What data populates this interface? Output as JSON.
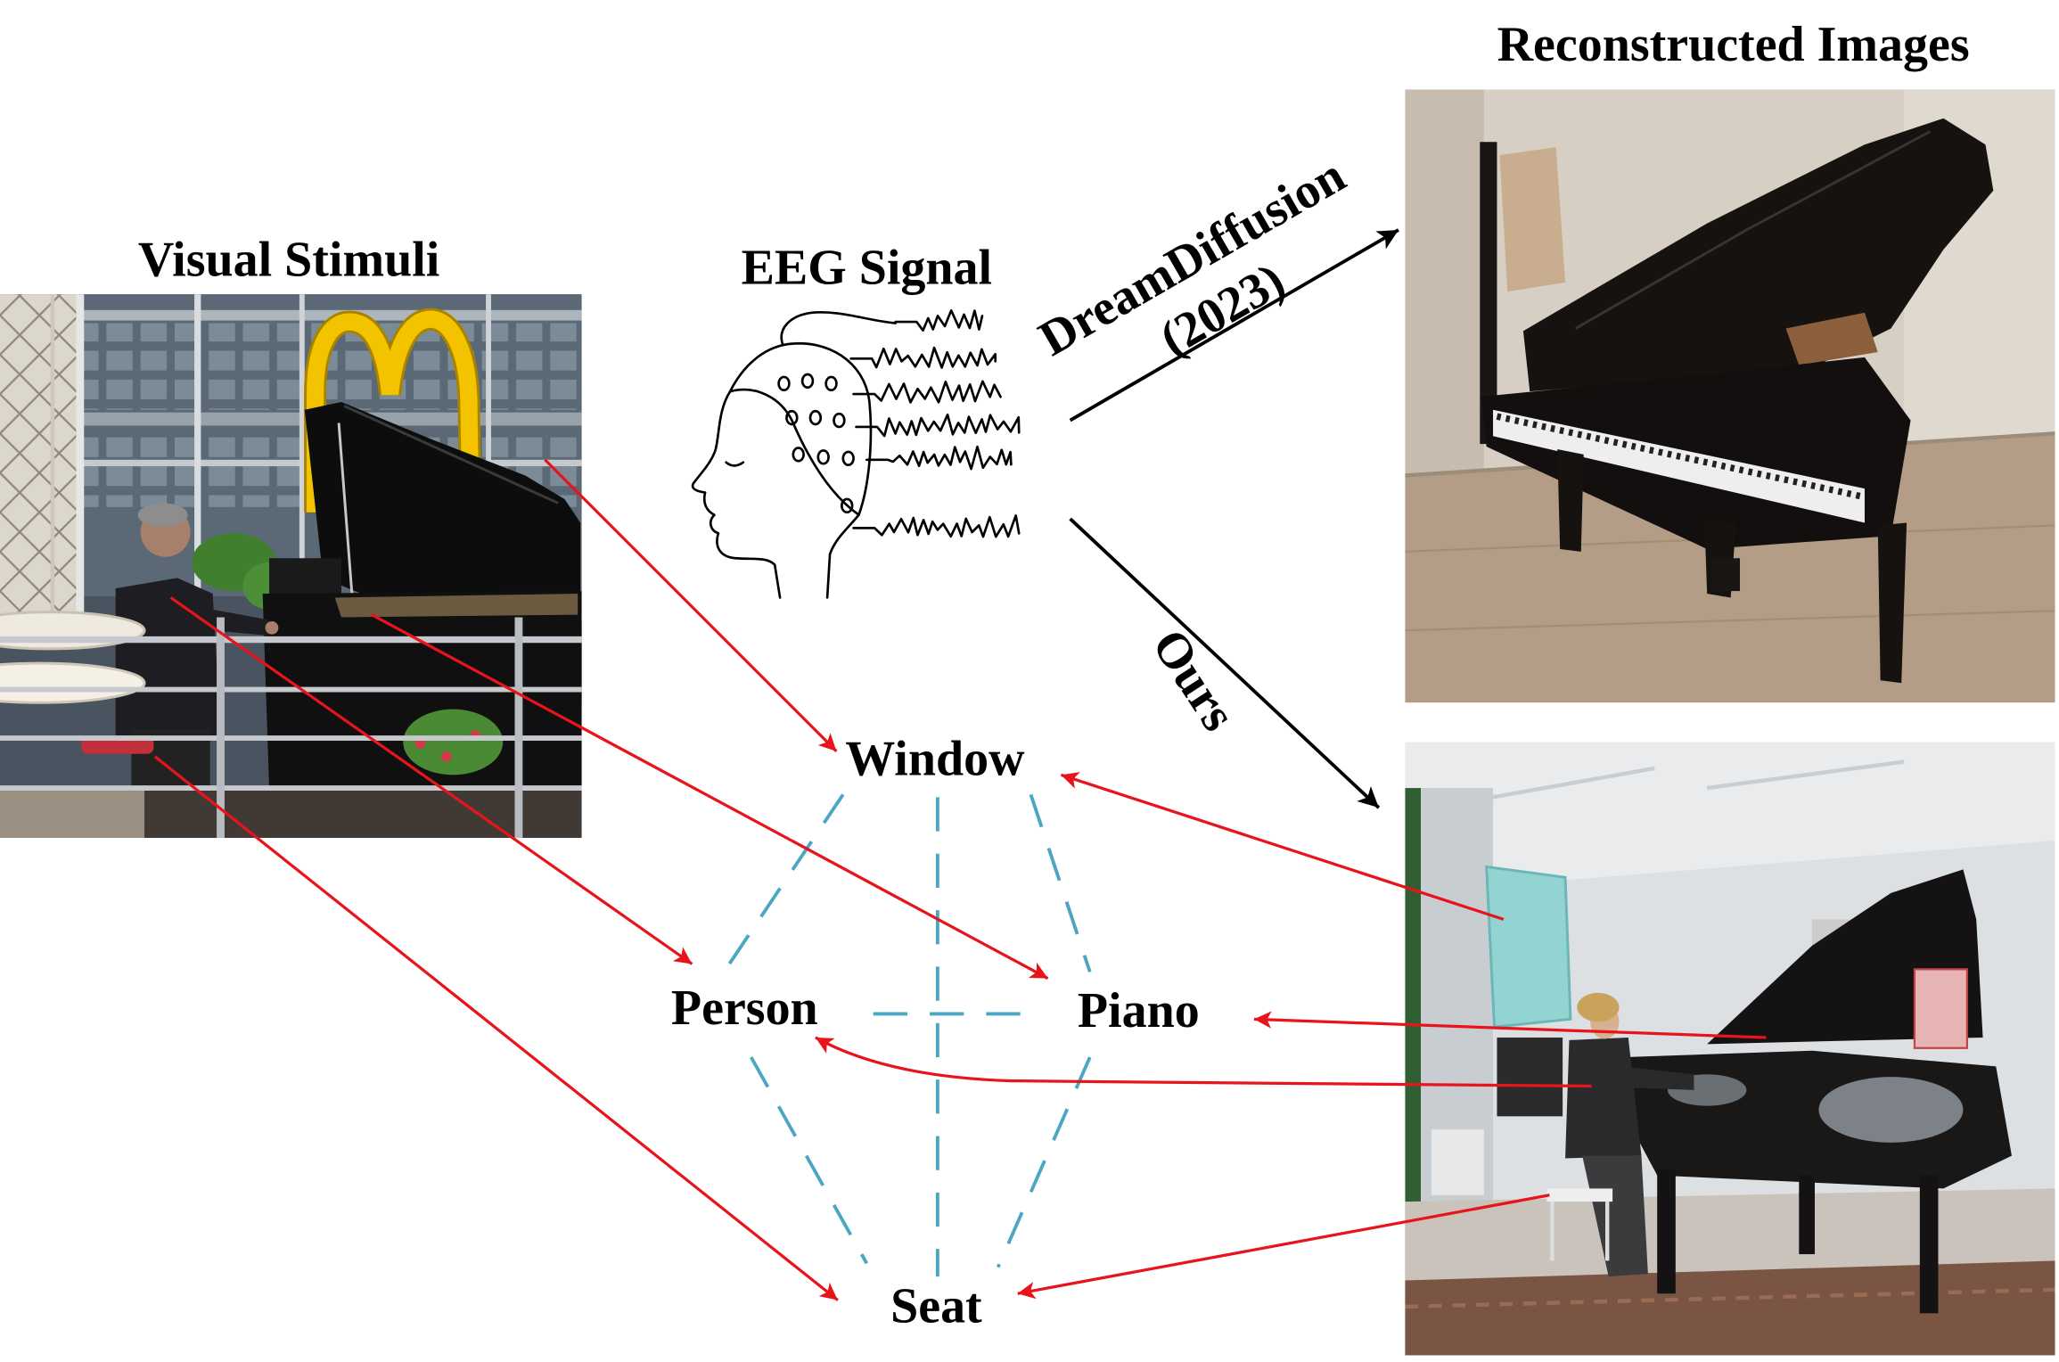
{
  "titles": {
    "visual_stimuli": "Visual Stimuli",
    "eeg_signal": "EEG Signal",
    "reconstructed_images": "Reconstructed Images"
  },
  "methods": {
    "baseline_name": "DreamDiffusion",
    "baseline_year": "(2023)",
    "ours": "Ours"
  },
  "scene_graph": {
    "nodes": [
      "Window",
      "Person",
      "Piano",
      "Seat"
    ]
  },
  "colors": {
    "correspondence_arrow": "#e8141c",
    "relation_line": "#4ba6c4",
    "method_arrow": "#000000",
    "mcdonalds_arches": "#f3c300"
  }
}
